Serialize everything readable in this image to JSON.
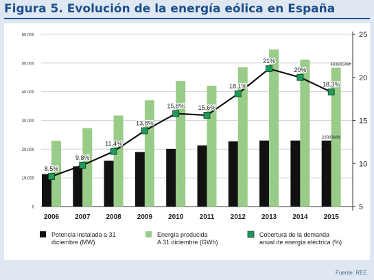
{
  "figure": {
    "title": "Figura 5. Evolución de la energía eólica en España",
    "source": "Fuente: REE."
  },
  "colors": {
    "title": "#1d4f8c",
    "background": "#dfe8f2",
    "potencia_bar": "#111111",
    "energia_bar": "#99cc88",
    "cobertura_line": "#111111",
    "cobertura_marker": "#1f9a5a"
  },
  "chart_data": {
    "type": "bar",
    "categories": [
      "2006",
      "2007",
      "2008",
      "2009",
      "2010",
      "2011",
      "2012",
      "2013",
      "2014",
      "2015"
    ],
    "series": [
      {
        "name": "Potencia instalada a 31 diciembre (MW)",
        "type": "bar",
        "axis": "left",
        "values": [
          11300,
          14000,
          16000,
          19000,
          20100,
          21300,
          22700,
          23000,
          23000,
          23003
        ]
      },
      {
        "name": "Energía producida A 31 diciembre (GWh)",
        "type": "bar",
        "axis": "left",
        "values": [
          22900,
          27300,
          31700,
          37000,
          43700,
          42100,
          48500,
          54700,
          51200,
          48380
        ]
      },
      {
        "name": "Cobertura de la demanda anual de energía eléctrica (%)",
        "type": "line",
        "axis": "right",
        "values": [
          8.5,
          9.8,
          11.4,
          13.8,
          15.8,
          15.6,
          18.1,
          21,
          20,
          18.3
        ],
        "labels": [
          "8,5%",
          "9,8%",
          "11,4%",
          "13,8%",
          "15,8%",
          "15,6%",
          "18,1%",
          "21%",
          "20%",
          "18,3%"
        ]
      }
    ],
    "annotations": [
      "48380GWh",
      "23003MW"
    ],
    "y_left": {
      "ylim": [
        0,
        60000
      ],
      "ticks": [
        0,
        10000,
        20000,
        30000,
        40000,
        50000,
        60000
      ],
      "tick_labels": [
        "0",
        "10.000",
        "20.000",
        "30.000",
        "40.000",
        "50.000",
        "60.000"
      ]
    },
    "y_right": {
      "ylim": [
        5,
        25
      ],
      "ticks": [
        5,
        10,
        15,
        20,
        25
      ],
      "tick_labels": [
        "5",
        "10",
        "15",
        "20",
        "25"
      ]
    },
    "grid": true,
    "legend": "bottom"
  }
}
